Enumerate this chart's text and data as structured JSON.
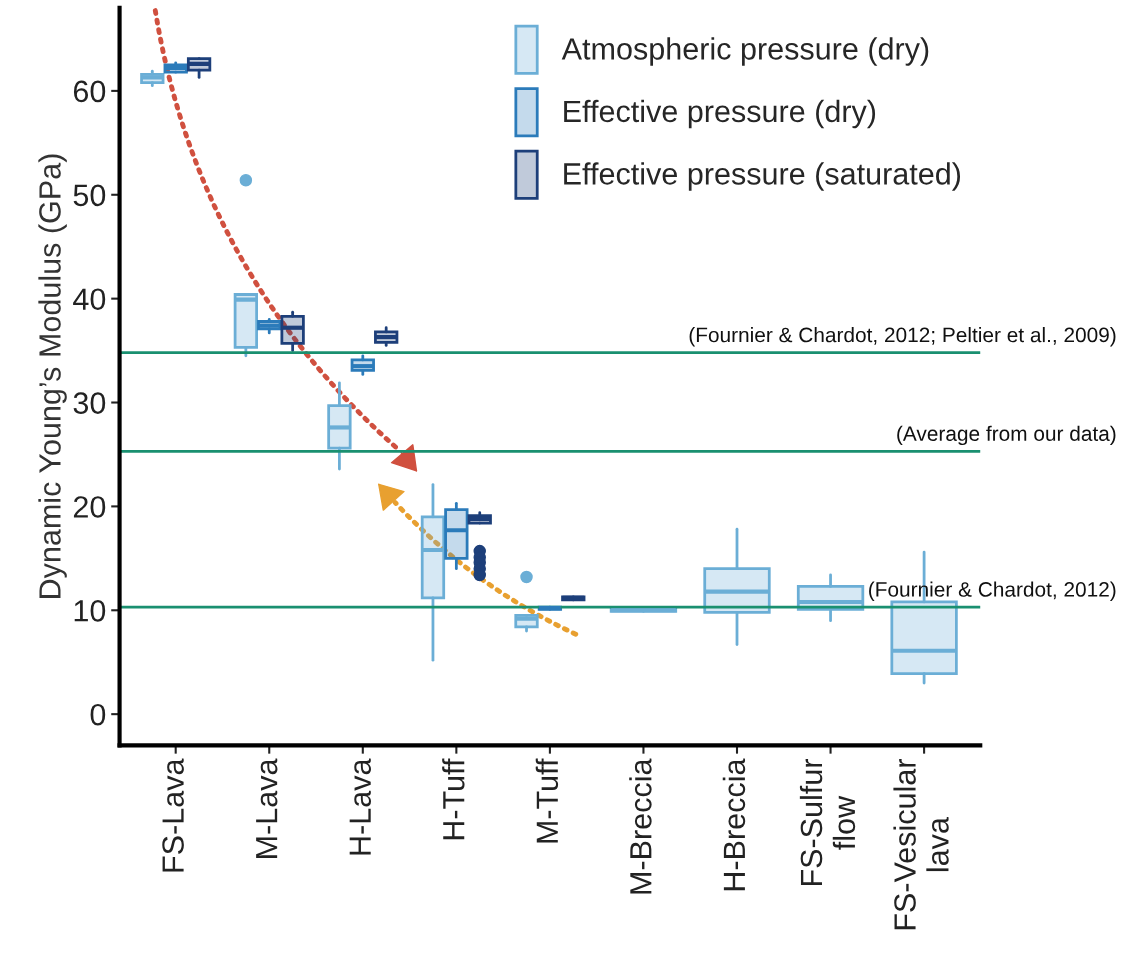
{
  "chart_data": {
    "type": "box",
    "ylabel": "Dynamic Young’s Modulus (GPa)",
    "categories": [
      "FS-Lava",
      "M-Lava",
      "H-Lava",
      "H-Tuff",
      "M-Tuff",
      "M-Breccia",
      "H-Breccia",
      "FS-Sulfur\nflow",
      "FS-Vesicular\nlava"
    ],
    "ylim": [
      -3,
      68
    ],
    "yticks": [
      0,
      10,
      20,
      30,
      40,
      50,
      60
    ],
    "grid": false,
    "legend": "top right",
    "series": [
      {
        "name": "Atmospheric pressure (dry)",
        "color": "#6baed6",
        "boxes": [
          {
            "low": 60.5,
            "q1": 60.8,
            "median": 61.3,
            "q3": 61.6,
            "high": 61.9
          },
          {
            "low": 34.5,
            "q1": 35.3,
            "median": 39.9,
            "q3": 40.4,
            "high": 40.4,
            "outliers": [
              51.4
            ]
          },
          {
            "low": 23.6,
            "q1": 25.6,
            "median": 27.6,
            "q3": 29.7,
            "high": 31.9
          },
          {
            "low": 5.2,
            "q1": 11.2,
            "median": 15.8,
            "q3": 19.0,
            "high": 22.1
          },
          {
            "low": 8.0,
            "q1": 8.4,
            "median": 9.2,
            "q3": 9.5,
            "high": 9.5,
            "outliers": [
              13.2
            ]
          },
          {
            "low": 9.9,
            "q1": 9.9,
            "median": 10.0,
            "q3": 10.1,
            "high": 10.1
          },
          {
            "low": 6.7,
            "q1": 9.8,
            "median": 11.8,
            "q3": 14.0,
            "high": 17.8
          },
          {
            "low": 9.0,
            "q1": 10.1,
            "median": 10.8,
            "q3": 12.3,
            "high": 13.4
          },
          {
            "low": 3.0,
            "q1": 3.9,
            "median": 6.1,
            "q3": 10.8,
            "high": 15.6
          }
        ]
      },
      {
        "name": "Effective pressure (dry)",
        "color": "#2b7bba",
        "boxes": [
          {
            "low": 61.8,
            "q1": 61.8,
            "median": 62.2,
            "q3": 62.5,
            "high": 62.7
          },
          {
            "low": 36.7,
            "q1": 37.1,
            "median": 37.4,
            "q3": 37.8,
            "high": 38.0
          },
          {
            "low": 32.7,
            "q1": 33.1,
            "median": 33.5,
            "q3": 34.1,
            "high": 34.5
          },
          {
            "low": 14.0,
            "q1": 15.0,
            "median": 17.7,
            "q3": 19.7,
            "high": 20.3
          },
          {
            "low": 10.1,
            "q1": 10.1,
            "median": 10.2,
            "q3": 10.3,
            "high": 10.3
          },
          null,
          null,
          null,
          null
        ]
      },
      {
        "name": "Effective pressure (saturated)",
        "color": "#1d3f7a",
        "boxes": [
          {
            "low": 61.3,
            "q1": 62.0,
            "median": 62.6,
            "q3": 63.1,
            "high": 63.1
          },
          {
            "low": 35.0,
            "q1": 35.7,
            "median": 37.2,
            "q3": 38.3,
            "high": 38.7
          },
          {
            "low": 35.5,
            "q1": 35.8,
            "median": 36.3,
            "q3": 36.8,
            "high": 37.2
          },
          {
            "low": 18.4,
            "q1": 18.4,
            "median": 18.8,
            "q3": 19.1,
            "high": 19.4,
            "outliers": [
              15.7,
              15.1,
              14.6,
              14.0,
              13.4
            ]
          },
          {
            "low": 11.0,
            "q1": 11.0,
            "median": 11.2,
            "q3": 11.3,
            "high": 11.3
          },
          null,
          null,
          null,
          null
        ]
      }
    ],
    "ref_lines": [
      {
        "axis": "y",
        "value": 34.8,
        "label": "(Fournier & Chardot, 2012; Peltier et al., 2009)",
        "color": "#1a9070"
      },
      {
        "axis": "y",
        "value": 25.3,
        "label": "(Average from our data)",
        "color": "#1a9070"
      },
      {
        "axis": "y",
        "value": 10.3,
        "label": "(Fournier & Chardot, 2012)",
        "color": "#1a9070"
      }
    ]
  }
}
